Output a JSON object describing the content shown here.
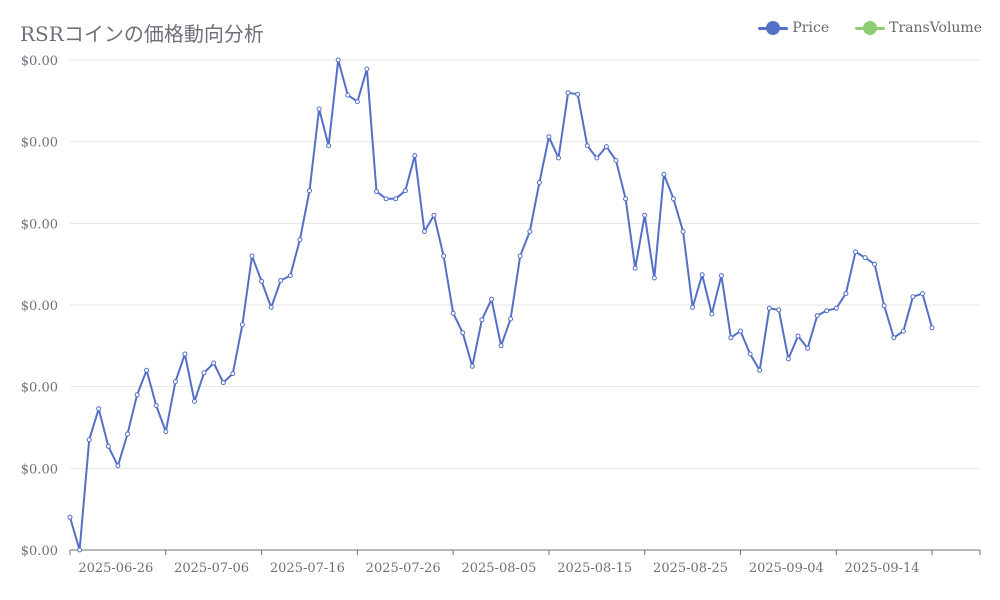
{
  "chart_data": {
    "type": "line",
    "title": "RSRコインの価格動向分析",
    "xlabel": "",
    "ylabel": "",
    "y_tick_labels": [
      "$0.00",
      "$0.00",
      "$0.00",
      "$0.00",
      "$0.00",
      "$0.00",
      "$0.00"
    ],
    "x_tick_labels": [
      "2025-06-26",
      "2025-07-06",
      "2025-07-16",
      "2025-07-26",
      "2025-08-05",
      "2025-08-15",
      "2025-08-25",
      "2025-09-04",
      "2025-09-14"
    ],
    "x_range": [
      "2025-06-16",
      "2025-09-19"
    ],
    "ylim": [
      0,
      6
    ],
    "legend_position": "top-right",
    "grid": true,
    "colors": {
      "price": "#5470c6",
      "volume": "#91cc75",
      "grid": "#e6e6e6",
      "axis": "#6e7079"
    },
    "series": [
      {
        "name": "Price",
        "x_start": "2025-06-16",
        "x_step_days": 1,
        "values": [
          0.4,
          0.0,
          1.35,
          1.73,
          1.27,
          1.03,
          1.42,
          1.9,
          2.2,
          1.77,
          1.45,
          2.06,
          2.4,
          1.82,
          2.17,
          2.29,
          2.05,
          2.16,
          2.76,
          3.6,
          3.29,
          2.97,
          3.3,
          3.36,
          3.8,
          4.4,
          5.4,
          4.95,
          6.0,
          5.57,
          5.49,
          5.89,
          4.39,
          4.3,
          4.3,
          4.4,
          4.83,
          3.9,
          4.1,
          3.6,
          2.9,
          2.66,
          2.25,
          2.82,
          3.07,
          2.5,
          2.83,
          3.6,
          3.9,
          4.5,
          5.06,
          4.8,
          5.6,
          5.58,
          4.95,
          4.8,
          4.94,
          4.77,
          4.3,
          3.45,
          4.1,
          3.33,
          4.6,
          4.3,
          3.9,
          2.97,
          3.37,
          2.89,
          3.36,
          2.6,
          2.68,
          2.4,
          2.2,
          2.96,
          2.94,
          2.34,
          2.62,
          2.47,
          2.87,
          2.93,
          2.96,
          3.14,
          3.65,
          3.58,
          3.5,
          2.99,
          2.6,
          2.68,
          3.1,
          3.14,
          2.72
        ]
      },
      {
        "name": "TransVolume",
        "values": []
      }
    ]
  }
}
